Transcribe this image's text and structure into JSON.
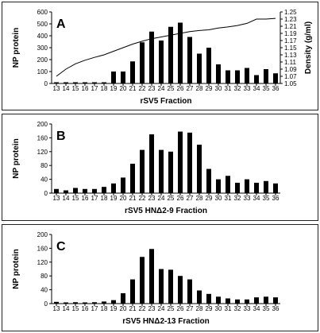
{
  "chart_data": [
    {
      "type": "bar",
      "panel_label": "A",
      "xlabel": "rSV5 Fraction",
      "ylabel": "NP protein",
      "ylabel_right": "Density (g/ml)",
      "ylim": [
        0,
        600
      ],
      "yticks": [
        "0",
        "100",
        "200",
        "300",
        "400",
        "500",
        "600"
      ],
      "y2lim": [
        1.05,
        1.25
      ],
      "y2ticks": [
        "1.05",
        "1.07",
        "1.09",
        "1.11",
        "1.13",
        "1.15",
        "1.17",
        "1.19",
        "1.21",
        "1.23",
        "1.25"
      ],
      "categories": [
        "13",
        "14",
        "15",
        "16",
        "17",
        "18",
        "19",
        "20",
        "21",
        "22",
        "23",
        "24",
        "25",
        "26",
        "27",
        "28",
        "29",
        "30",
        "31",
        "32",
        "33",
        "34",
        "35",
        "36"
      ],
      "values": [
        0,
        0,
        0,
        0,
        0,
        0,
        100,
        100,
        185,
        345,
        435,
        360,
        475,
        510,
        390,
        250,
        300,
        160,
        110,
        110,
        130,
        70,
        120,
        85
      ],
      "line": [
        1.07,
        1.09,
        1.105,
        1.115,
        1.123,
        1.13,
        1.14,
        1.15,
        1.16,
        1.168,
        1.175,
        1.18,
        1.185,
        1.19,
        1.195,
        1.198,
        1.2,
        1.205,
        1.208,
        1.212,
        1.218,
        1.23,
        1.23,
        1.232
      ]
    },
    {
      "type": "bar",
      "panel_label": "B",
      "xlabel": "rSV5 HNΔ2-9 Fraction",
      "ylabel": "NP protein",
      "ylim": [
        0,
        200
      ],
      "yticks": [
        "0",
        "40",
        "80",
        "120",
        "160",
        "200"
      ],
      "categories": [
        "13",
        "14",
        "15",
        "16",
        "17",
        "18",
        "19",
        "20",
        "21",
        "22",
        "23",
        "24",
        "25",
        "26",
        "27",
        "28",
        "29",
        "30",
        "31",
        "32",
        "33",
        "34",
        "35",
        "36"
      ],
      "values": [
        12,
        8,
        15,
        12,
        12,
        18,
        28,
        45,
        85,
        125,
        170,
        125,
        120,
        178,
        175,
        140,
        70,
        40,
        50,
        30,
        40,
        30,
        35,
        28
      ]
    },
    {
      "type": "bar",
      "panel_label": "C",
      "xlabel": "rSV5 HNΔ2-13 Fraction",
      "ylabel": "NP protein",
      "ylim": [
        0,
        200
      ],
      "yticks": [
        "0",
        "40",
        "80",
        "120",
        "160",
        "200"
      ],
      "categories": [
        "13",
        "14",
        "15",
        "16",
        "17",
        "18",
        "19",
        "20",
        "21",
        "22",
        "23",
        "24",
        "25",
        "26",
        "27",
        "28",
        "29",
        "30",
        "31",
        "32",
        "33",
        "34",
        "35",
        "36"
      ],
      "values": [
        5,
        3,
        4,
        3,
        4,
        6,
        10,
        30,
        70,
        135,
        158,
        100,
        98,
        80,
        70,
        38,
        28,
        20,
        15,
        12,
        12,
        18,
        20,
        18
      ]
    }
  ]
}
